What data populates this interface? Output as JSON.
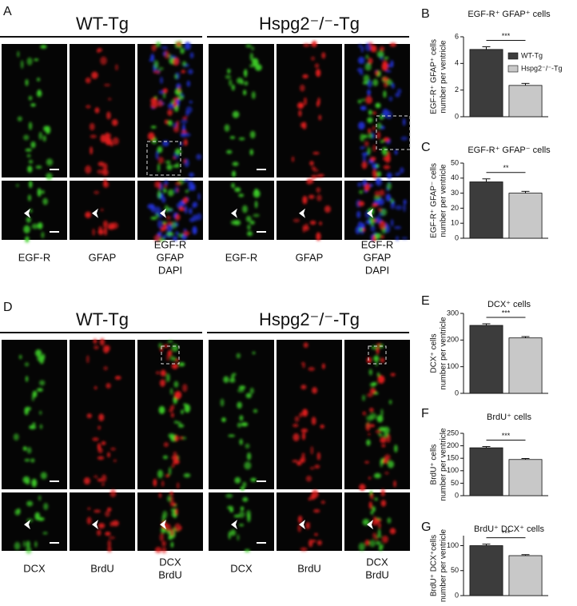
{
  "figure": {
    "panels": [
      {
        "label": "A",
        "groups": [
          {
            "title": "WT-Tg",
            "channels": [
              [
                {
                  "text": "EGF-R",
                  "color": "#3fae2a"
                }
              ],
              [
                {
                  "text": "GFAP",
                  "color": "#e02020"
                }
              ],
              [
                {
                  "text": "EGF-R",
                  "color": "#3fae2a"
                },
                {
                  "text": "GFAP",
                  "color": "#e02020"
                },
                {
                  "text": "DAPI",
                  "color": "#2a2ae0"
                }
              ]
            ]
          },
          {
            "title": "Hspg2⁻/⁻-Tg",
            "channels": [
              [
                {
                  "text": "EGF-R",
                  "color": "#3fae2a"
                }
              ],
              [
                {
                  "text": "GFAP",
                  "color": "#e02020"
                }
              ],
              [
                {
                  "text": "EGF-R",
                  "color": "#3fae2a"
                },
                {
                  "text": "GFAP",
                  "color": "#e02020"
                },
                {
                  "text": "DAPI",
                  "color": "#2a2ae0"
                }
              ]
            ]
          }
        ]
      },
      {
        "label": "D",
        "groups": [
          {
            "title": "WT-Tg",
            "channels": [
              [
                {
                  "text": "DCX",
                  "color": "#3fae2a"
                }
              ],
              [
                {
                  "text": "BrdU",
                  "color": "#e02020"
                }
              ],
              [
                {
                  "text": "DCX",
                  "color": "#3fae2a"
                },
                {
                  "text": "BrdU",
                  "color": "#e02020"
                }
              ]
            ]
          },
          {
            "title": "Hspg2⁻/⁻-Tg",
            "channels": [
              [
                {
                  "text": "DCX",
                  "color": "#3fae2a"
                }
              ],
              [
                {
                  "text": "BrdU",
                  "color": "#e02020"
                }
              ],
              [
                {
                  "text": "DCX",
                  "color": "#3fae2a"
                },
                {
                  "text": "BrdU",
                  "color": "#e02020"
                }
              ]
            ]
          }
        ]
      }
    ]
  },
  "chart_data": [
    {
      "type": "bar",
      "label": "B",
      "title": "EGF-R⁺ GFAP⁺ cells",
      "ylabel": [
        "EGF-R⁺ GFAP⁺ cells",
        "number per ventricle"
      ],
      "ylim": [
        0,
        6
      ],
      "yticks": [
        0,
        2,
        4,
        6
      ],
      "significance": "***",
      "legend": "right",
      "series": [
        {
          "name": "WT-Tg",
          "color": "#3c3c3c",
          "values": [
            5.05
          ],
          "errors": [
            0.2
          ]
        },
        {
          "name": "Hspg2⁻/⁻-Tg",
          "color": "#c8c8c8",
          "values": [
            2.35
          ],
          "errors": [
            0.15
          ]
        }
      ]
    },
    {
      "type": "bar",
      "label": "C",
      "title": "EGF-R⁺ GFAP⁻ cells",
      "ylabel": [
        "EGF-R⁺ GFAP⁻ cells",
        "number per ventricle"
      ],
      "ylim": [
        0,
        50
      ],
      "yticks": [
        0,
        10,
        20,
        30,
        40,
        50
      ],
      "significance": "**",
      "series": [
        {
          "color": "#3c3c3c",
          "values": [
            37.5
          ],
          "errors": [
            2
          ]
        },
        {
          "color": "#c8c8c8",
          "values": [
            30
          ],
          "errors": [
            1.2
          ]
        }
      ]
    },
    {
      "type": "bar",
      "label": "E",
      "title": "DCX⁺ cells",
      "ylabel": [
        "DCX⁺ cells",
        "number per ventricle"
      ],
      "ylim": [
        0,
        300
      ],
      "yticks": [
        0,
        100,
        200,
        300
      ],
      "significance": "***",
      "series": [
        {
          "color": "#3c3c3c",
          "values": [
            255
          ],
          "errors": [
            6
          ]
        },
        {
          "color": "#c8c8c8",
          "values": [
            208
          ],
          "errors": [
            5
          ]
        }
      ]
    },
    {
      "type": "bar",
      "label": "F",
      "title": "BrdU⁺ cells",
      "ylabel": [
        "BrdU⁺ cells",
        "number per ventricle"
      ],
      "ylim": [
        0,
        250
      ],
      "yticks": [
        0,
        50,
        100,
        150,
        200,
        250
      ],
      "significance": "***",
      "series": [
        {
          "color": "#3c3c3c",
          "values": [
            192
          ],
          "errors": [
            5
          ]
        },
        {
          "color": "#c8c8c8",
          "values": [
            145
          ],
          "errors": [
            4
          ]
        }
      ]
    },
    {
      "type": "bar",
      "label": "G",
      "title": "BrdU⁺ DCX⁺ cells",
      "ylabel": [
        "BrdU⁺ DCX⁺cells",
        "number per ventricle"
      ],
      "ylim": [
        0,
        120
      ],
      "yticks": [
        0,
        50,
        100
      ],
      "significance": "***",
      "series": [
        {
          "color": "#3c3c3c",
          "values": [
            100
          ],
          "errors": [
            3
          ]
        },
        {
          "color": "#c8c8c8",
          "values": [
            80
          ],
          "errors": [
            2
          ]
        }
      ]
    }
  ]
}
